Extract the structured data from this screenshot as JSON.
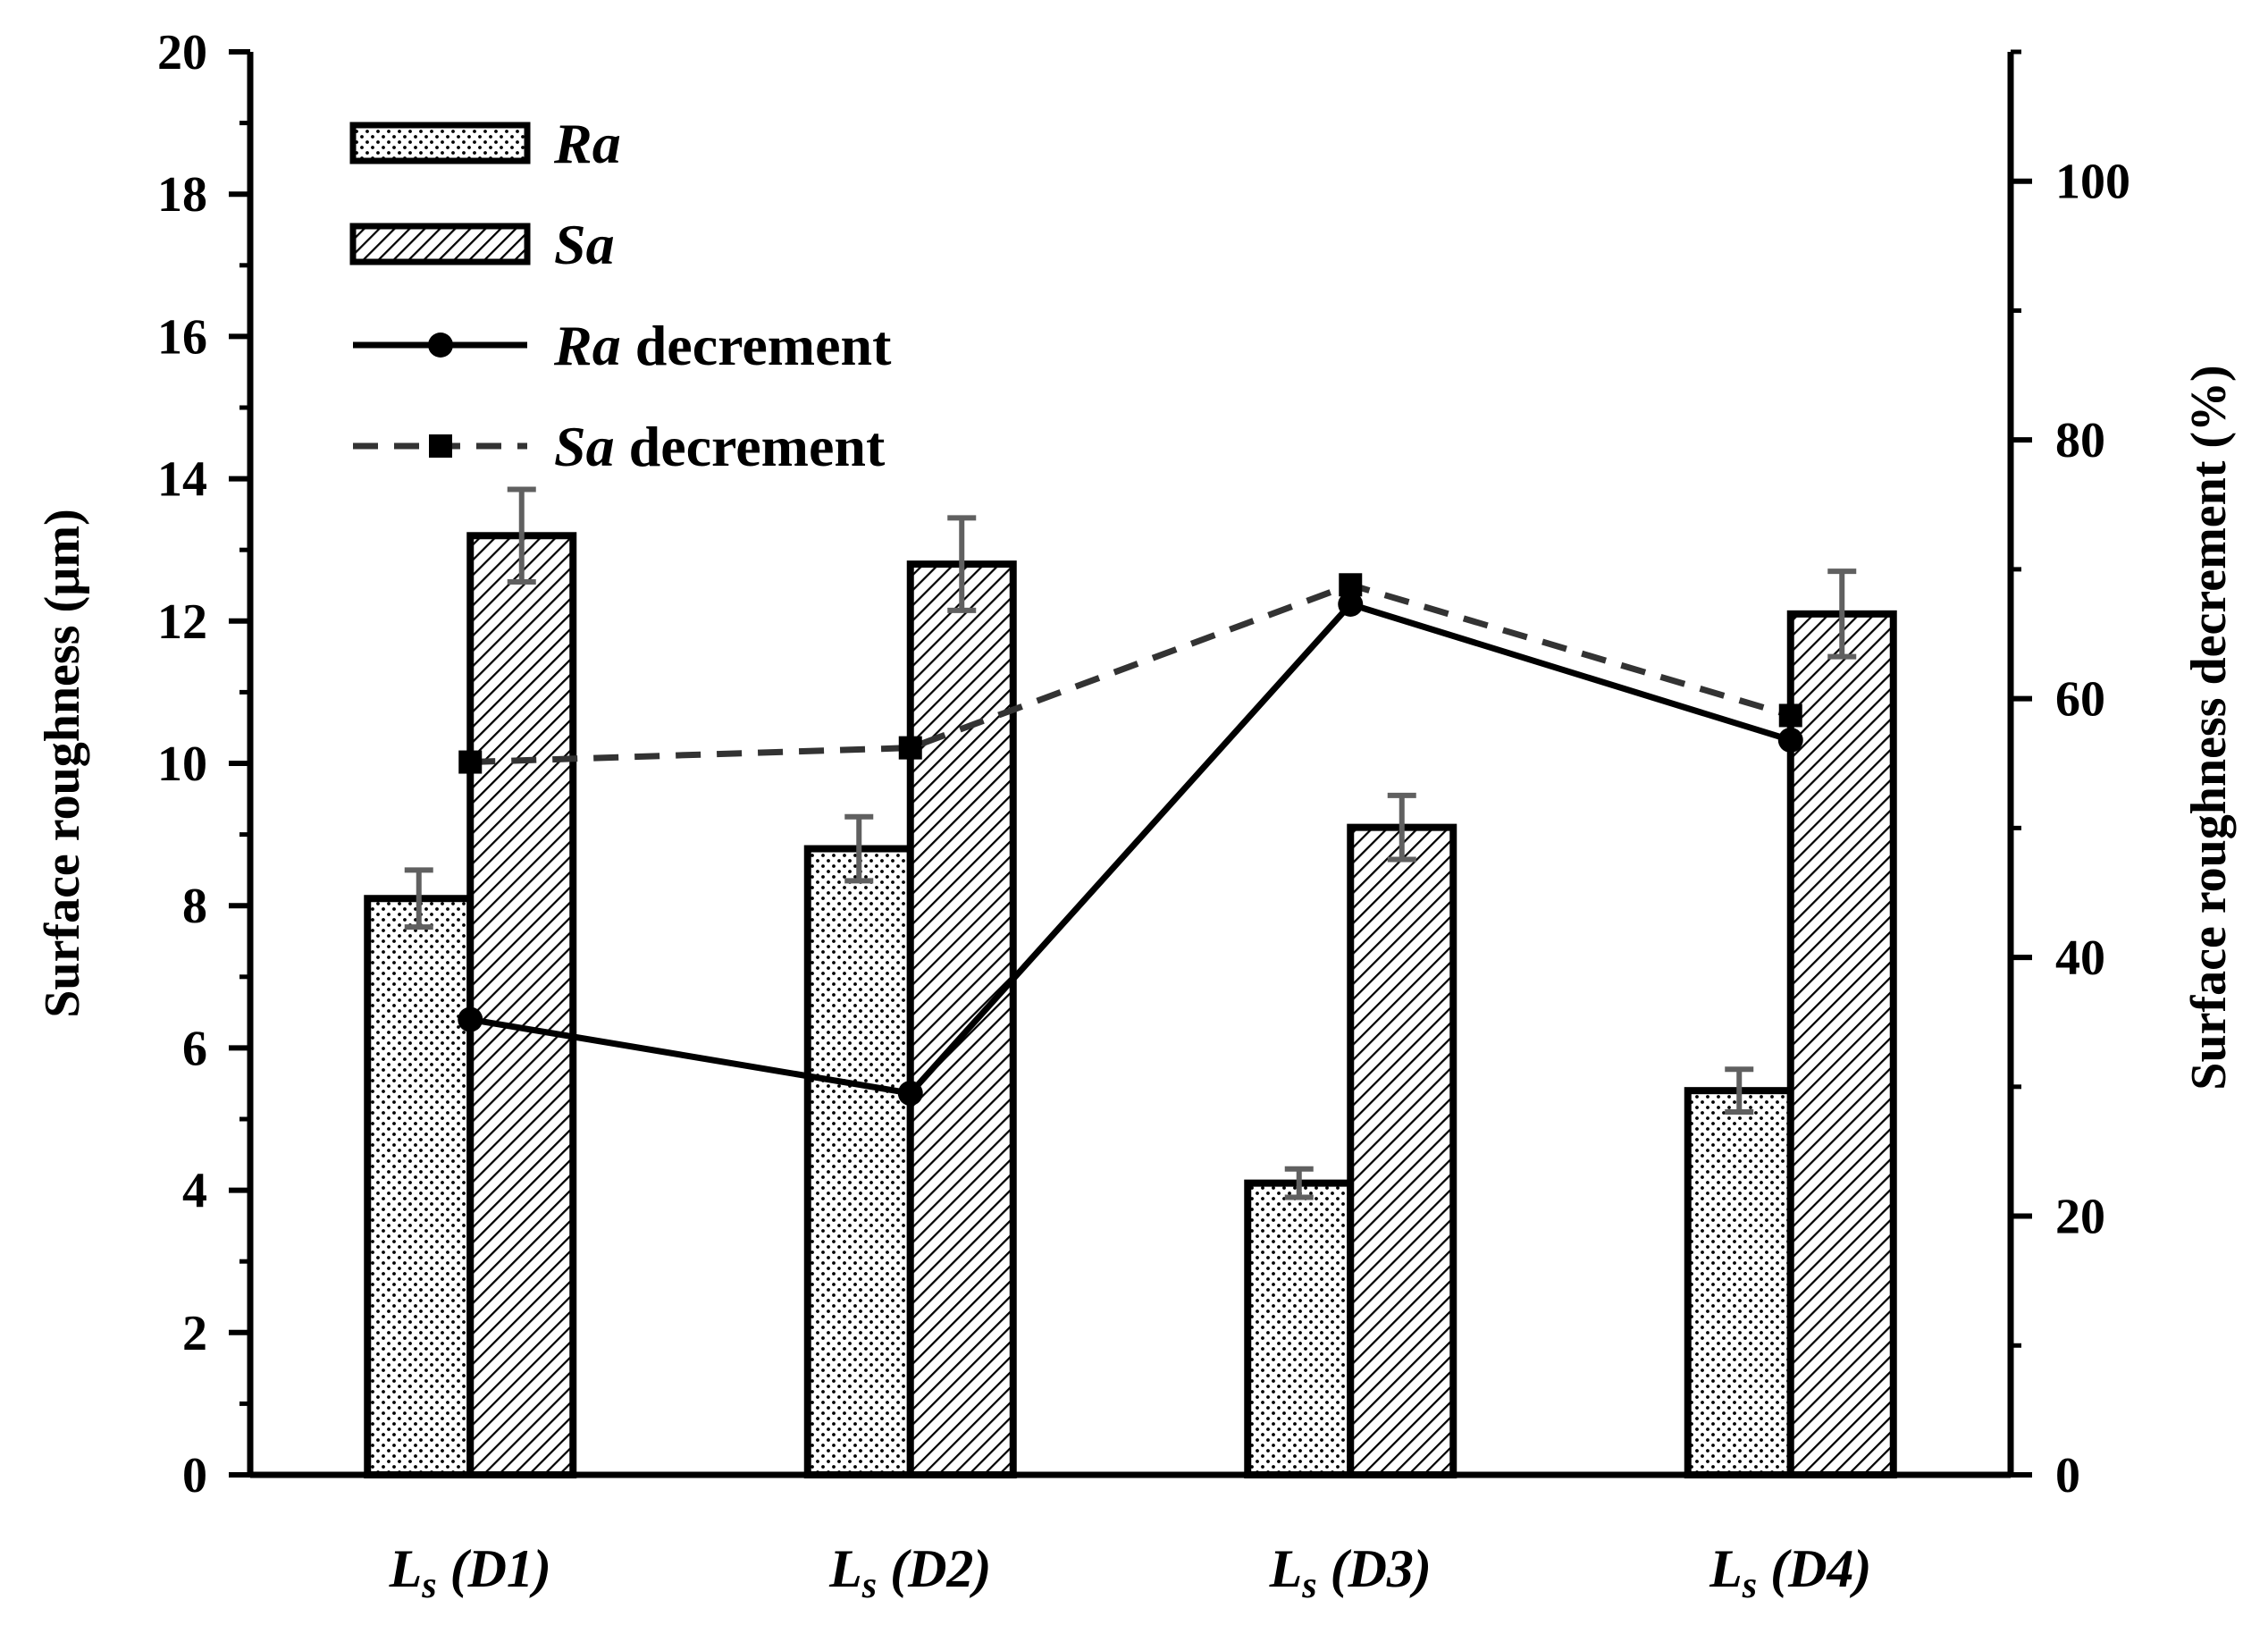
{
  "chart_data": {
    "type": "bar",
    "categories": [
      {
        "main": "L",
        "sub": "s",
        "rest": " (D1)"
      },
      {
        "main": "L",
        "sub": "s",
        "rest": " (D2)"
      },
      {
        "main": "L",
        "sub": "s",
        "rest": " (D3)"
      },
      {
        "main": "L",
        "sub": "s",
        "rest": " (D4)"
      }
    ],
    "ylabel": "Surface roughness (µm)",
    "y2label": "Surface roughness decrement (%)",
    "ylim": [
      0,
      20
    ],
    "yticks": [
      0,
      2,
      4,
      6,
      8,
      10,
      12,
      14,
      16,
      18,
      20
    ],
    "y2lim": [
      0,
      110
    ],
    "y2ticks": [
      0,
      20,
      40,
      60,
      80,
      100
    ],
    "legend_position": "top-left",
    "series": [
      {
        "name": "Ra",
        "kind": "bar",
        "pattern": "dots",
        "legend_italic": "Ra",
        "legend_rest": "",
        "values": [
          8.1,
          8.8,
          4.1,
          5.4
        ],
        "errors": [
          0.4,
          0.45,
          0.2,
          0.3
        ]
      },
      {
        "name": "Sa",
        "kind": "bar",
        "pattern": "hatch",
        "legend_italic": "Sa",
        "legend_rest": "",
        "values": [
          13.2,
          12.8,
          9.1,
          12.1
        ],
        "errors": [
          0.65,
          0.65,
          0.45,
          0.6
        ]
      },
      {
        "name": "Ra decrement",
        "kind": "line",
        "axis": "right",
        "marker": "circle",
        "line_style": "solid",
        "legend_italic": "Ra",
        "legend_rest": " decrement",
        "values": [
          35.2,
          29.5,
          67.3,
          56.8
        ]
      },
      {
        "name": "Sa decrement",
        "kind": "line",
        "axis": "right",
        "marker": "square",
        "line_style": "dashed",
        "legend_italic": "Sa",
        "legend_rest": " decrement",
        "values": [
          55.1,
          56.2,
          68.8,
          58.7
        ]
      }
    ],
    "colors": {
      "axis": "#000000",
      "errorbar": "#606060",
      "solid_line": "#000000",
      "dashed_line": "#333333",
      "bar_fill": "#ffffff"
    }
  }
}
